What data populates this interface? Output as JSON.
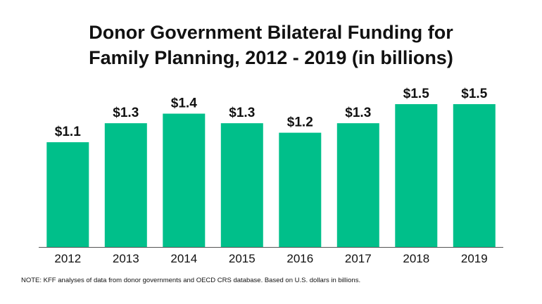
{
  "title_line1": "Donor Government Bilateral Funding for",
  "title_line2": "Family Planning, 2012 - 2019 (in billions)",
  "note": "NOTE: KFF analyses of data from donor governments and OECD CRS database. Based on U.S. dollars in billions.",
  "chart_data": {
    "type": "bar",
    "categories": [
      "2012",
      "2013",
      "2014",
      "2015",
      "2016",
      "2017",
      "2018",
      "2019"
    ],
    "values": [
      1.1,
      1.3,
      1.4,
      1.3,
      1.2,
      1.3,
      1.5,
      1.5
    ],
    "data_labels": [
      "$1.1",
      "$1.3",
      "$1.4",
      "$1.3",
      "$1.2",
      "$1.3",
      "$1.5",
      "$1.5"
    ],
    "xlabel": "",
    "ylabel": "",
    "ylim": [
      0,
      1.5
    ],
    "grid": false,
    "bar_color": "#00BF8A",
    "axis_color": "#555555"
  }
}
